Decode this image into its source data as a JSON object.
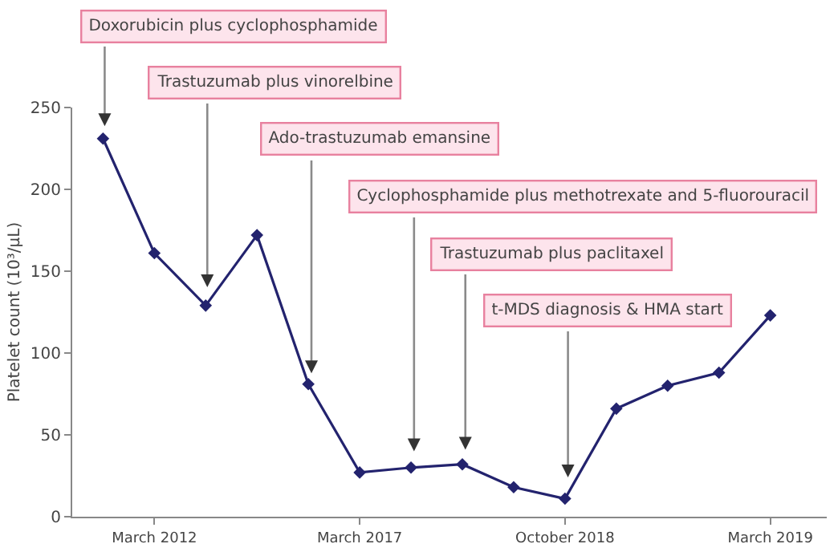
{
  "chart_data": {
    "type": "line",
    "ylabel": "Platelet count (10³/μL)",
    "categories": [
      null,
      "March 2012",
      null,
      null,
      null,
      "March 2017",
      null,
      null,
      null,
      "October 2018",
      null,
      null,
      null,
      "March 2019"
    ],
    "series": [
      {
        "color": "#23236e",
        "values": [
          231,
          161,
          129,
          172,
          81,
          27,
          30,
          32,
          18,
          11,
          66,
          80,
          88,
          123
        ]
      }
    ],
    "ylim": [
      0,
      250
    ],
    "yticks": [
      0,
      50,
      100,
      150,
      200,
      250
    ],
    "grid": false,
    "marker": "diamond",
    "line_style": "solid",
    "annotations": [
      "Doxorubicin plus cyclophosphamide",
      "Trastuzumab plus vinorelbine",
      "Ado-trastuzumab emansine",
      "Cyclophosphamide plus methotrexate and 5-fluorouracil",
      "Trastuzumab plus paclitaxel",
      "t-MDS diagnosis & HMA start"
    ]
  }
}
